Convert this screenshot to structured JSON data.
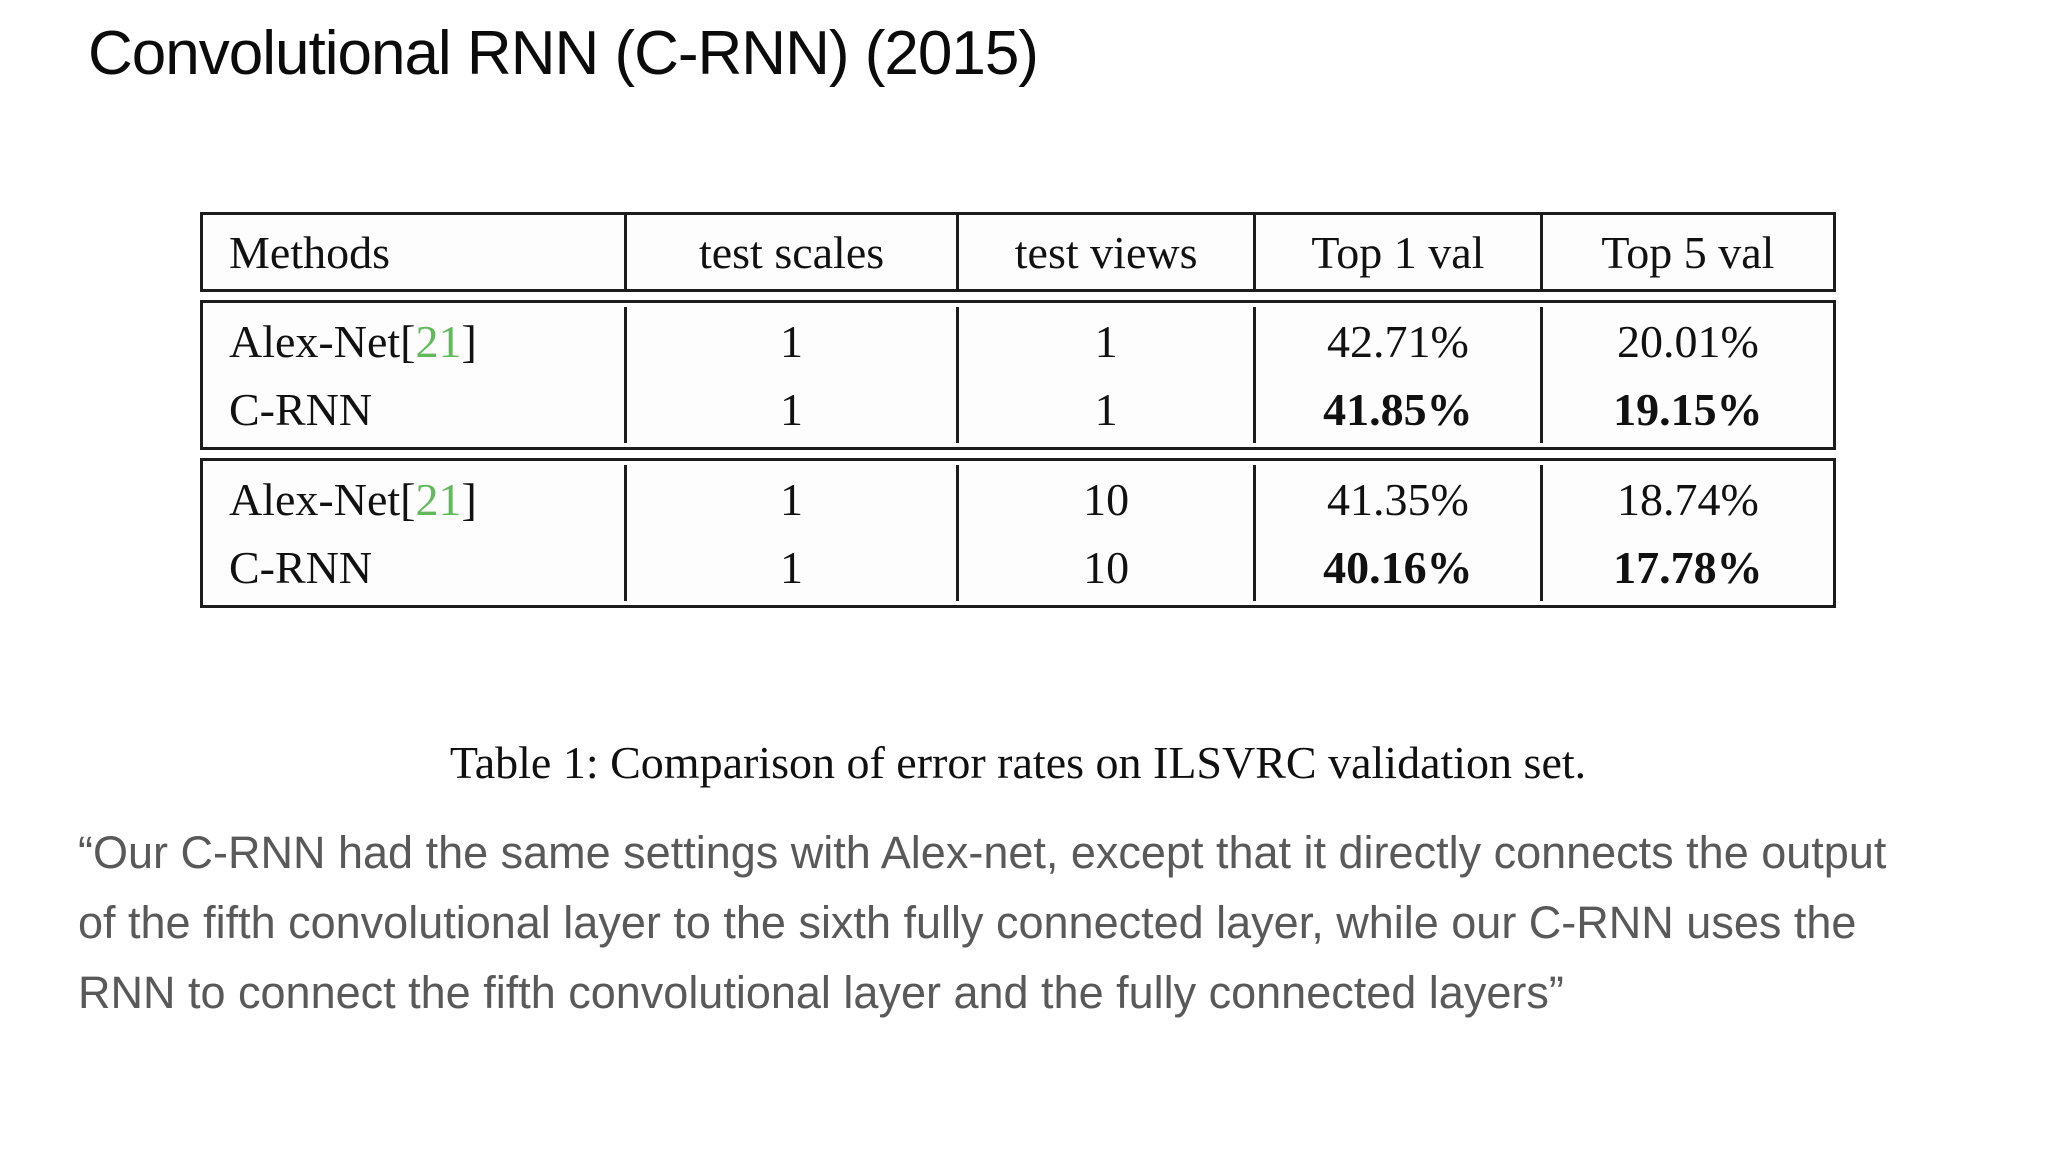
{
  "slide": {
    "title": "Convolutional RNN (C-RNN) (2015)",
    "caption": "Table 1: Comparison of error rates on ILSVRC validation set.",
    "quote": "“Our C-RNN had the same settings with Alex-net, except that it directly connects the output of the fifth convolutional layer to the sixth fully connected layer, while our C-RNN uses the RNN to connect the fifth convolutional layer and the fully connected layers”"
  },
  "colors": {
    "reference_green": "#62b95c",
    "quote_gray": "#595959",
    "table_border": "#1c1c1c"
  },
  "table": {
    "headers": [
      "Methods",
      "test scales",
      "test views",
      "Top 1 val",
      "Top 5 val"
    ],
    "groups": [
      {
        "rows": [
          {
            "method": "Alex-Net",
            "ref_open": " [",
            "ref": "21",
            "ref_close": "]",
            "scales": "1",
            "views": "1",
            "top1": "42.71%",
            "top5": "20.01%"
          },
          {
            "method": "C-RNN",
            "ref_open": "",
            "ref": "",
            "ref_close": "",
            "scales": "1",
            "views": "1",
            "top1": "41.85%",
            "top5": "19.15%"
          }
        ]
      },
      {
        "rows": [
          {
            "method": "Alex-Net",
            "ref_open": " [",
            "ref": "21",
            "ref_close": "]",
            "scales": "1",
            "views": "10",
            "top1": "41.35%",
            "top5": "18.74%"
          },
          {
            "method": "C-RNN",
            "ref_open": "",
            "ref": "",
            "ref_close": "",
            "scales": "1",
            "views": "10",
            "top1": "40.16%",
            "top5": "17.78%"
          }
        ]
      }
    ]
  },
  "chart_data": {
    "type": "table",
    "title": "Table 1: Comparison of error rates on ILSVRC validation set.",
    "columns": [
      "Methods",
      "test scales",
      "test views",
      "Top 1 val",
      "Top 5 val"
    ],
    "rows": [
      [
        "Alex-Net [21]",
        1,
        1,
        "42.71%",
        "20.01%"
      ],
      [
        "C-RNN",
        1,
        1,
        "41.85%",
        "19.15%"
      ],
      [
        "Alex-Net [21]",
        1,
        10,
        "41.35%",
        "18.74%"
      ],
      [
        "C-RNN",
        1,
        10,
        "40.16%",
        "17.78%"
      ]
    ]
  }
}
